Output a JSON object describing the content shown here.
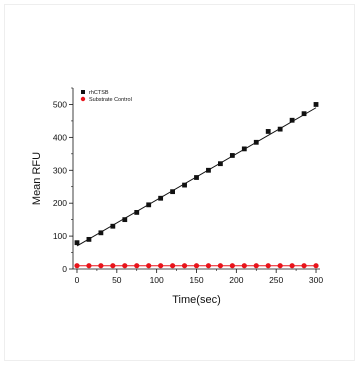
{
  "chart_data": {
    "type": "scatter",
    "title": "",
    "xlabel": "Time(sec)",
    "ylabel": "Mean RFU",
    "xlim": [
      -5,
      305
    ],
    "ylim": [
      0,
      550
    ],
    "xticks": [
      0,
      50,
      100,
      150,
      200,
      250,
      300
    ],
    "yticks": [
      0,
      100,
      200,
      300,
      400,
      500
    ],
    "xtick_labels": [
      "0",
      "50",
      "100",
      "150",
      "200",
      "250",
      "300"
    ],
    "ytick_labels": [
      "0",
      "100",
      "200",
      "300",
      "400",
      "500"
    ],
    "legend_position": "top-left",
    "grid": false,
    "series": [
      {
        "name": "rhCTSB",
        "marker": "square",
        "color": "#111111",
        "fit_line": {
          "color": "#111111",
          "x": [
            0,
            300
          ],
          "y": [
            70,
            490
          ]
        },
        "x": [
          0,
          15,
          30,
          45,
          60,
          75,
          90,
          105,
          120,
          135,
          150,
          165,
          180,
          195,
          210,
          225,
          240,
          255,
          270,
          285,
          300
        ],
        "y": [
          80,
          90,
          110,
          130,
          150,
          172,
          195,
          215,
          235,
          255,
          278,
          300,
          320,
          345,
          365,
          385,
          418,
          425,
          452,
          472,
          500
        ]
      },
      {
        "name": "Substrate Control",
        "marker": "circle",
        "color": "#e8141b",
        "fit_line": {
          "color": "#e8141b",
          "x": [
            0,
            300
          ],
          "y": [
            10,
            10
          ]
        },
        "x": [
          0,
          15,
          30,
          45,
          60,
          75,
          90,
          105,
          120,
          135,
          150,
          165,
          180,
          195,
          210,
          225,
          240,
          255,
          270,
          285,
          300
        ],
        "y": [
          10,
          10,
          10,
          10,
          10,
          10,
          10,
          10,
          10,
          10,
          10,
          10,
          10,
          10,
          10,
          10,
          10,
          10,
          10,
          10,
          10
        ]
      }
    ]
  }
}
